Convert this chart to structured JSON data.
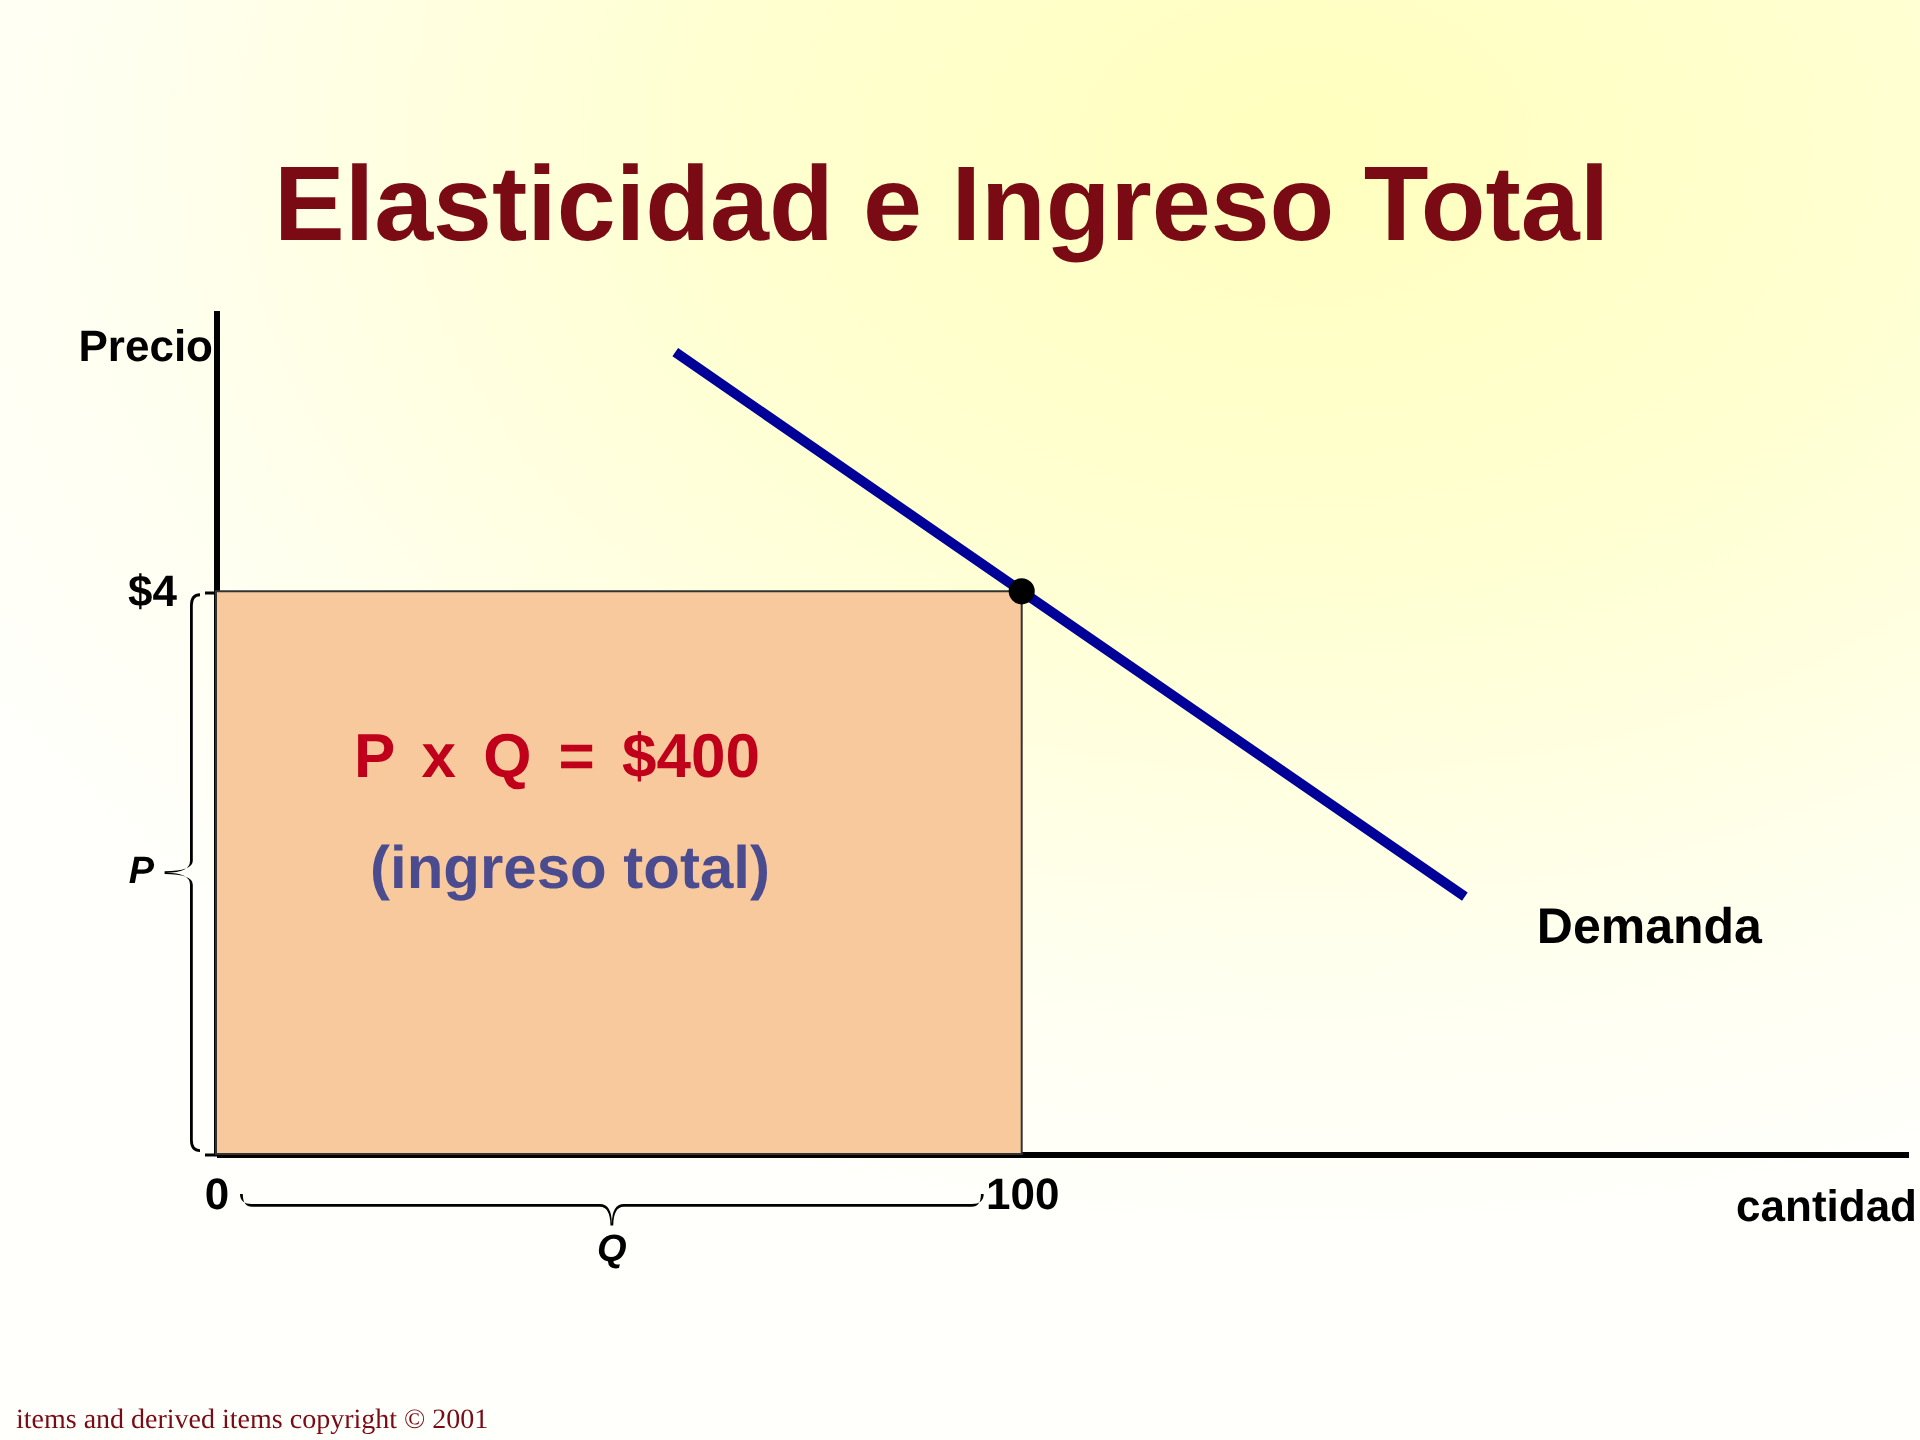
{
  "chart_data": {
    "type": "line",
    "title": "Elasticidad e Ingreso Total",
    "xlabel": "cantidad",
    "ylabel": "Precio",
    "xlim": [
      0,
      210
    ],
    "ylim": [
      0,
      6
    ],
    "xticks": [
      0,
      100
    ],
    "yticks": [
      {
        "value": 0,
        "label": null
      },
      {
        "value": 4,
        "label": "$4"
      }
    ],
    "series": [
      {
        "type": "area",
        "color": "#f7c99c",
        "x": [
          0,
          100
        ],
        "values": [
          4,
          4
        ]
      },
      {
        "type": "line",
        "name": "Demanda",
        "color": "#000099",
        "x": [
          57,
          100,
          155
        ],
        "values": [
          5.7,
          4,
          1.83
        ]
      },
      {
        "type": "scatter",
        "color": "#000000",
        "marker": "circle",
        "x": [
          100
        ],
        "values": [
          4
        ]
      }
    ],
    "annotations": [
      "P x Q = $400",
      "(ingreso total)",
      "P",
      "Q",
      "items and derived items copyright © 2001"
    ]
  }
}
